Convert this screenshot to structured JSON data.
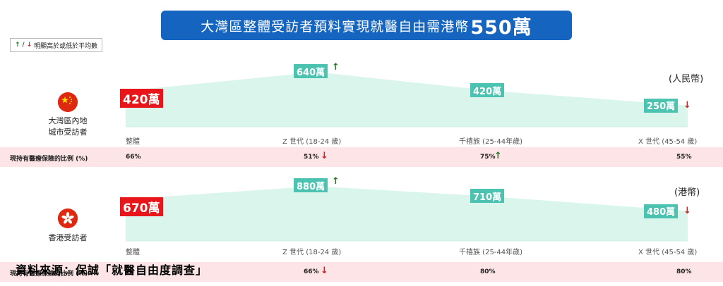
{
  "title": {
    "main": "大灣區整體受訪者預料實現就醫自由需港幣",
    "amount": "550萬"
  },
  "legend": {
    "separator": "/",
    "text": "明顯高於或低於平均數"
  },
  "source": "資料來源：保誠「就醫自由度調查」",
  "colors": {
    "title_bg": "#1565c0",
    "area_fill": "#d9f5ec",
    "label_bg": "#4cc3b0",
    "highlight": "#e8151b",
    "band": "#fde4e6",
    "up_arrow": "#1b7d1b",
    "down_arrow": "#e01b1b"
  },
  "icons": {
    "up": "up-arrow-icon",
    "down": "down-arrow-icon"
  },
  "chart_data": [
    {
      "type": "area",
      "region": [
        "大灣區內地",
        "城市受訪者"
      ],
      "currency_label": "(人民幣)",
      "categories": [
        "整體",
        "Z 世代 (18-24 歲)",
        "千禧族 (25-44年歲)",
        "X 世代 (45-54 歲)"
      ],
      "values": [
        420,
        640,
        420,
        250
      ],
      "value_labels": [
        "420萬",
        "640萬",
        "420萬",
        "250萬"
      ],
      "value_arrows": [
        "",
        "up",
        "",
        "down"
      ],
      "insurance_label": "現持有醫療保險的比例 (%)",
      "insurance": [
        "66%",
        "51%",
        "75%",
        "55%"
      ],
      "insurance_arrows": [
        "",
        "down",
        "up",
        ""
      ],
      "ylim": [
        0,
        700
      ]
    },
    {
      "type": "area",
      "region": [
        "香港受訪者"
      ],
      "currency_label": "(港幣)",
      "categories": [
        "整體",
        "Z 世代 (18-24 歲)",
        "千禧族 (25-44年歲)",
        "X 世代 (45-54 歲)"
      ],
      "values": [
        670,
        880,
        710,
        480
      ],
      "value_labels": [
        "670萬",
        "880萬",
        "710萬",
        "480萬"
      ],
      "value_arrows": [
        "",
        "up",
        "",
        "down"
      ],
      "insurance_label": "現持有醫療保險的比例 (%)",
      "insurance": [
        "",
        "66%",
        "80%",
        "80%"
      ],
      "insurance_arrows": [
        "",
        "down",
        "",
        ""
      ],
      "ylim": [
        0,
        950
      ]
    }
  ]
}
